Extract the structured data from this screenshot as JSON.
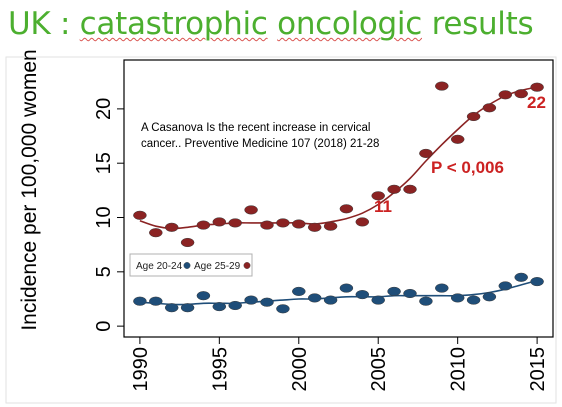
{
  "slide": {
    "title_prefix": "UK : ",
    "title_words": [
      "catastrophic",
      "oncologic",
      "results"
    ]
  },
  "chart_data": {
    "type": "scatter",
    "title": "",
    "xlabel": "",
    "ylabel": "Incidence per 100,000 women",
    "xlim": [
      1989,
      2016
    ],
    "ylim": [
      -1,
      24.5
    ],
    "x_ticks": [
      1990,
      1995,
      2000,
      2005,
      2010,
      2015
    ],
    "y_ticks": [
      0,
      5,
      10,
      15,
      20
    ],
    "grid": false,
    "legend_position": "left",
    "fit_lines": true,
    "series": [
      {
        "name": "Age 20-24",
        "color": "#1f4e79",
        "x": [
          1990,
          1991,
          1992,
          1993,
          1994,
          1995,
          1996,
          1997,
          1998,
          1999,
          2000,
          2001,
          2002,
          2003,
          2004,
          2005,
          2006,
          2007,
          2008,
          2009,
          2010,
          2011,
          2012,
          2013,
          2014,
          2015
        ],
        "y": [
          2.3,
          2.3,
          1.7,
          1.7,
          2.8,
          1.8,
          1.9,
          2.4,
          2.2,
          1.6,
          3.2,
          2.6,
          2.4,
          3.5,
          2.9,
          2.4,
          3.2,
          3.0,
          2.3,
          3.5,
          2.6,
          2.4,
          2.7,
          3.7,
          4.5,
          4.1
        ],
        "trend": [
          2.2,
          2.1,
          2.0,
          2.0,
          2.1,
          2.1,
          2.1,
          2.2,
          2.3,
          2.4,
          2.5,
          2.5,
          2.6,
          2.7,
          2.7,
          2.7,
          2.8,
          2.8,
          2.8,
          2.8,
          2.8,
          2.9,
          3.1,
          3.4,
          3.8,
          4.2
        ]
      },
      {
        "name": "Age 25-29",
        "color": "#8b2323",
        "x": [
          1990,
          1991,
          1992,
          1993,
          1994,
          1995,
          1996,
          1997,
          1998,
          1999,
          2000,
          2001,
          2002,
          2003,
          2004,
          2005,
          2006,
          2007,
          2008,
          2009,
          2010,
          2011,
          2012,
          2013,
          2014,
          2015
        ],
        "y": [
          10.2,
          8.6,
          9.1,
          7.7,
          9.3,
          9.6,
          9.5,
          10.7,
          9.3,
          9.5,
          9.4,
          9.1,
          9.2,
          10.8,
          9.6,
          12.0,
          12.6,
          12.6,
          15.9,
          22.1,
          17.2,
          19.3,
          20.1,
          21.3,
          21.4,
          22.0
        ],
        "trend": [
          9.7,
          9.2,
          9.0,
          9.1,
          9.3,
          9.4,
          9.5,
          9.5,
          9.5,
          9.5,
          9.5,
          9.4,
          9.6,
          9.9,
          10.4,
          11.2,
          12.3,
          13.6,
          15.2,
          16.7,
          18.1,
          19.4,
          20.4,
          21.2,
          21.7,
          22.0
        ]
      }
    ],
    "annotations": [
      {
        "id": "ref_line1",
        "text": "A Casanova Is the recent increase in cervical",
        "color": "#000000"
      },
      {
        "id": "ref_line2",
        "text": "cancer.. Preventive Medicine 107 (2018) 21-28",
        "color": "#000000"
      },
      {
        "id": "pvalue",
        "text": "P < 0,006",
        "color": "#cc2222"
      },
      {
        "id": "label11",
        "text": "11",
        "color": "#cc2222"
      },
      {
        "id": "label22",
        "text": "22",
        "color": "#cc2222"
      }
    ]
  }
}
